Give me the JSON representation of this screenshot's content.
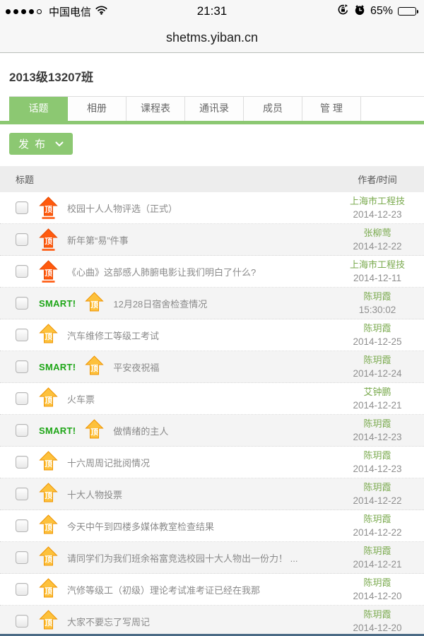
{
  "status_bar": {
    "carrier": "中国电信",
    "time": "21:31",
    "battery_percent": "65%",
    "battery_level": 65,
    "signal": {
      "filled": 4,
      "total": 5
    },
    "icons": [
      "signal-dots",
      "wifi-icon",
      "orientation-lock-icon",
      "alarm-icon",
      "battery-icon"
    ]
  },
  "url_bar": {
    "url": "shetms.yiban.cn"
  },
  "page": {
    "title": "2013级13207班",
    "tabs": [
      {
        "label": "话题",
        "active": true
      },
      {
        "label": "相册",
        "active": false
      },
      {
        "label": "课程表",
        "active": false
      },
      {
        "label": "通讯录",
        "active": false
      },
      {
        "label": "成员",
        "active": false
      },
      {
        "label": "管 理",
        "active": false
      }
    ],
    "publish_button": {
      "label": "发 布"
    },
    "table": {
      "header": {
        "title_col": "标题",
        "author_col": "作者/时间"
      },
      "rows": [
        {
          "badge": "",
          "icon": "top-red",
          "title": "校园十人人物评选（正式）",
          "author": "上海市工程技",
          "time": "2014-12-23"
        },
        {
          "badge": "",
          "icon": "top-red",
          "title": "新年第“易”件事",
          "author": "张柳莺",
          "time": "2014-12-22"
        },
        {
          "badge": "",
          "icon": "top-red",
          "title": "《心曲》这部感人肺腑电影让我们明白了什么?",
          "author": "上海市工程技",
          "time": "2014-12-11"
        },
        {
          "badge": "SMART!",
          "icon": "top-gold",
          "title": "12月28日宿舍检查情况",
          "author": "陈玥霞",
          "time": "15:30:02"
        },
        {
          "badge": "",
          "icon": "top-gold",
          "title": "汽车维修工等级工考试",
          "author": "陈玥霞",
          "time": "2014-12-25"
        },
        {
          "badge": "SMART!",
          "icon": "top-gold",
          "title": "平安夜祝福",
          "author": "陈玥霞",
          "time": "2014-12-24"
        },
        {
          "badge": "",
          "icon": "top-gold",
          "title": "火车票",
          "author": "艾钟鹏",
          "time": "2014-12-21"
        },
        {
          "badge": "SMART!",
          "icon": "top-gold",
          "title": "做情绪的主人",
          "author": "陈玥霞",
          "time": "2014-12-23"
        },
        {
          "badge": "",
          "icon": "top-gold",
          "title": "十六周周记批阅情况",
          "author": "陈玥霞",
          "time": "2014-12-23"
        },
        {
          "badge": "",
          "icon": "top-gold",
          "title": "十大人物投票",
          "author": "陈玥霞",
          "time": "2014-12-22"
        },
        {
          "badge": "",
          "icon": "top-gold",
          "title": "今天中午到四楼多媒体教室检查结果",
          "author": "陈玥霞",
          "time": "2014-12-22"
        },
        {
          "badge": "",
          "icon": "top-gold",
          "title": "请同学们为我们班余裕富竞选校园十大人物出一份力！ ...",
          "author": "陈玥霞",
          "time": "2014-12-21"
        },
        {
          "badge": "",
          "icon": "top-gold",
          "title": "汽修等级工（初级）理论考试准考证已经在我那",
          "author": "陈玥霞",
          "time": "2014-12-20"
        },
        {
          "badge": "",
          "icon": "top-gold",
          "title": "大家不要忘了写周记",
          "author": "陈玥霞",
          "time": "2014-12-20"
        }
      ]
    }
  },
  "colors": {
    "accent_green": "#8cc872",
    "smart_green": "#1ea617",
    "author_green": "#7aaa4e",
    "icon_red": "#ff5a0e",
    "icon_gold": "#fdc13c",
    "row_alt_bg": "#f4f4f4",
    "header_bg": "#ededed"
  }
}
